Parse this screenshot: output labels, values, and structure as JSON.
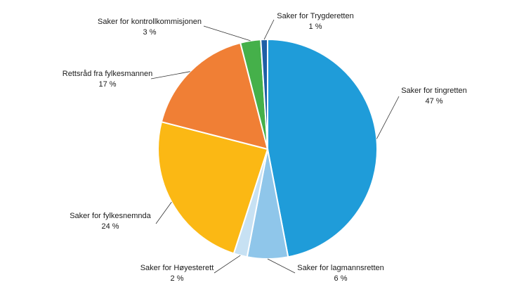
{
  "chart_data": {
    "type": "pie",
    "slices": [
      {
        "name": "Saker for tingretten",
        "value": 47,
        "label": "47 %",
        "color": "#1f9cd9"
      },
      {
        "name": "Saker for lagmannsretten",
        "value": 6,
        "label": "6 %",
        "color": "#8fc6ea"
      },
      {
        "name": "Saker for Høyesterett",
        "value": 2,
        "label": "2 %",
        "color": "#c7e1f3"
      },
      {
        "name": "Saker for fylkesnemnda",
        "value": 24,
        "label": "24 %",
        "color": "#fbb814"
      },
      {
        "name": "Rettsråd fra fylkesmannen",
        "value": 17,
        "label": "17 %",
        "color": "#f07f35"
      },
      {
        "name": "Saker for kontrollkommisjonen",
        "value": 3,
        "label": "3 %",
        "color": "#45b04a"
      },
      {
        "name": "Saker for Trygderetten",
        "value": 1,
        "label": "1 %",
        "color": "#1f5fa6"
      }
    ]
  }
}
